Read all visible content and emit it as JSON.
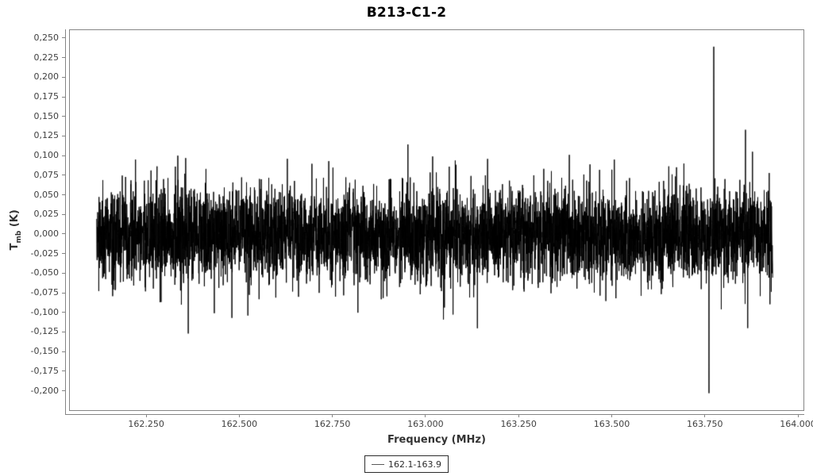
{
  "chart": {
    "title": "B213-C1-2",
    "xlabel": "Frequency (MHz)",
    "ylabel_symbol": "T",
    "ylabel_sub": "mb",
    "ylabel_unit": " (K)",
    "legend": {
      "label": "162.1-163.9"
    }
  },
  "chart_data": {
    "type": "line",
    "title": "B213-C1-2",
    "xlabel": "Frequency (MHz)",
    "ylabel": "T_mb (K)",
    "grid": false,
    "legend": {
      "entries": [
        "162.1-163.9"
      ],
      "position": "bottom-center",
      "boxed": true
    },
    "xlim": [
      162.043,
      164.017
    ],
    "ylim": [
      -0.2257,
      0.2611
    ],
    "x_ticks": [
      {
        "value": 162.25,
        "label": "162.250"
      },
      {
        "value": 162.5,
        "label": "162.500"
      },
      {
        "value": 162.75,
        "label": "162.750"
      },
      {
        "value": 163.0,
        "label": "163.000"
      },
      {
        "value": 163.25,
        "label": "163.250"
      },
      {
        "value": 163.5,
        "label": "163.500"
      },
      {
        "value": 163.75,
        "label": "163.750"
      },
      {
        "value": 164.0,
        "label": "164.000"
      }
    ],
    "y_ticks": [
      {
        "value": 0.25,
        "label": "0,250"
      },
      {
        "value": 0.225,
        "label": "0,225"
      },
      {
        "value": 0.2,
        "label": "0,200"
      },
      {
        "value": 0.175,
        "label": "0,175"
      },
      {
        "value": 0.15,
        "label": "0,150"
      },
      {
        "value": 0.125,
        "label": "0,125"
      },
      {
        "value": 0.1,
        "label": "0,100"
      },
      {
        "value": 0.075,
        "label": "0,075"
      },
      {
        "value": 0.05,
        "label": "0,050"
      },
      {
        "value": 0.025,
        "label": "0,025"
      },
      {
        "value": 0.0,
        "label": "0,000"
      },
      {
        "value": -0.025,
        "label": "-0,025"
      },
      {
        "value": -0.05,
        "label": "-0,050"
      },
      {
        "value": -0.075,
        "label": "-0,075"
      },
      {
        "value": -0.1,
        "label": "-0,100"
      },
      {
        "value": -0.125,
        "label": "-0,125"
      },
      {
        "value": -0.15,
        "label": "-0,150"
      },
      {
        "value": -0.175,
        "label": "-0,175"
      },
      {
        "value": -0.2,
        "label": "-0,200"
      }
    ],
    "series": [
      {
        "name": "162.1-163.9",
        "color": "#000000",
        "x_start": 162.115,
        "x_end": 163.93,
        "n_points": 5500,
        "baseline": 0.0,
        "noise_sigma": 0.03,
        "typical_band": 0.05,
        "seed": 1337,
        "spikes": [
          {
            "x": 162.333,
            "y": 0.101
          },
          {
            "x": 162.627,
            "y": 0.097
          },
          {
            "x": 162.738,
            "y": 0.094
          },
          {
            "x": 163.017,
            "y": 0.1
          },
          {
            "x": 163.384,
            "y": 0.102
          },
          {
            "x": 163.505,
            "y": 0.096
          },
          {
            "x": 163.772,
            "y": 0.24
          },
          {
            "x": 163.857,
            "y": 0.134
          },
          {
            "x": 163.876,
            "y": 0.106
          },
          {
            "x": 162.431,
            "y": -0.1
          },
          {
            "x": 162.478,
            "y": -0.106
          },
          {
            "x": 162.521,
            "y": -0.103
          },
          {
            "x": 163.046,
            "y": -0.108
          },
          {
            "x": 163.759,
            "y": -0.202
          },
          {
            "x": 163.792,
            "y": -0.095
          },
          {
            "x": 163.863,
            "y": -0.119
          }
        ]
      }
    ],
    "colors": {
      "plot_border": "#858585",
      "axis_line": "#858585",
      "tick_label": "#404040",
      "axis_title": "#333333",
      "title": "#000000",
      "series": "#000000",
      "legend_border": "#2b2b2b",
      "legend_sample": "#5a5a5a",
      "background": "#ffffff"
    }
  }
}
